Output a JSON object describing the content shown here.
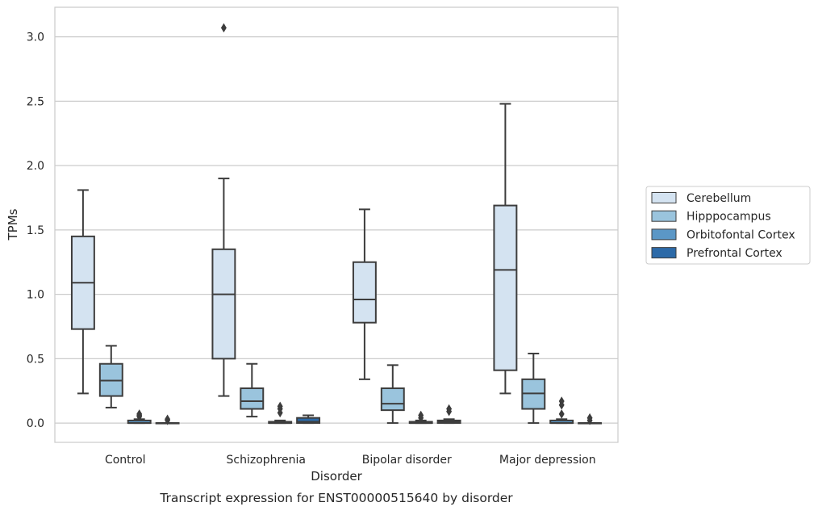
{
  "chart_data": {
    "type": "box",
    "title": "",
    "caption": "Transcript expression for ENST00000515640 by disorder",
    "xlabel": "Disorder",
    "ylabel": "TPMs",
    "ylim": [
      -0.15,
      3.23
    ],
    "yticks": [
      "0.0",
      "0.5",
      "1.0",
      "1.5",
      "2.0",
      "2.5",
      "3.0"
    ],
    "grid": "horizontal",
    "legend_position": "right",
    "categories": [
      "Control",
      "Schizophrenia",
      "Bipolar disorder",
      "Major depression"
    ],
    "series": [
      {
        "name": "Cerebellum",
        "color": "#d4e3f1",
        "boxes": [
          {
            "whislo": 0.23,
            "q1": 0.73,
            "med": 1.09,
            "q3": 1.45,
            "whishi": 1.81,
            "fliers": []
          },
          {
            "whislo": 0.21,
            "q1": 0.5,
            "med": 1.0,
            "q3": 1.35,
            "whishi": 1.9,
            "fliers": [
              3.07
            ]
          },
          {
            "whislo": 0.34,
            "q1": 0.78,
            "med": 0.96,
            "q3": 1.25,
            "whishi": 1.66,
            "fliers": []
          },
          {
            "whislo": 0.23,
            "q1": 0.41,
            "med": 1.19,
            "q3": 1.69,
            "whishi": 2.48,
            "fliers": []
          }
        ]
      },
      {
        "name": "Hipppocampus",
        "color": "#9ac4dd",
        "boxes": [
          {
            "whislo": 0.12,
            "q1": 0.21,
            "med": 0.33,
            "q3": 0.46,
            "whishi": 0.6,
            "fliers": []
          },
          {
            "whislo": 0.05,
            "q1": 0.11,
            "med": 0.17,
            "q3": 0.27,
            "whishi": 0.46,
            "fliers": []
          },
          {
            "whislo": 0.0,
            "q1": 0.1,
            "med": 0.15,
            "q3": 0.27,
            "whishi": 0.45,
            "fliers": []
          },
          {
            "whislo": 0.0,
            "q1": 0.11,
            "med": 0.23,
            "q3": 0.34,
            "whishi": 0.54,
            "fliers": []
          }
        ]
      },
      {
        "name": "Orbitofontal Cortex",
        "color": "#5b97c6",
        "boxes": [
          {
            "whislo": 0.0,
            "q1": 0.0,
            "med": 0.0,
            "q3": 0.02,
            "whishi": 0.03,
            "fliers": [
              0.05,
              0.06,
              0.07
            ]
          },
          {
            "whislo": 0.0,
            "q1": 0.0,
            "med": 0.0,
            "q3": 0.01,
            "whishi": 0.02,
            "fliers": [
              0.08,
              0.11,
              0.13
            ]
          },
          {
            "whislo": 0.0,
            "q1": 0.0,
            "med": 0.0,
            "q3": 0.01,
            "whishi": 0.02,
            "fliers": [
              0.04,
              0.06
            ]
          },
          {
            "whislo": 0.0,
            "q1": 0.0,
            "med": 0.0,
            "q3": 0.02,
            "whishi": 0.03,
            "fliers": [
              0.07,
              0.14,
              0.17
            ]
          }
        ]
      },
      {
        "name": "Prefrontal Cortex",
        "color": "#2c6aa8",
        "boxes": [
          {
            "whislo": 0.0,
            "q1": 0.0,
            "med": 0.0,
            "q3": 0.0,
            "whishi": 0.0,
            "fliers": [
              0.02,
              0.03
            ]
          },
          {
            "whislo": 0.0,
            "q1": 0.0,
            "med": 0.01,
            "q3": 0.04,
            "whishi": 0.06,
            "fliers": []
          },
          {
            "whislo": 0.0,
            "q1": 0.0,
            "med": 0.01,
            "q3": 0.02,
            "whishi": 0.03,
            "fliers": [
              0.09,
              0.11
            ]
          },
          {
            "whislo": 0.0,
            "q1": 0.0,
            "med": 0.0,
            "q3": 0.0,
            "whishi": 0.0,
            "fliers": [
              0.02,
              0.04
            ]
          }
        ]
      }
    ]
  }
}
